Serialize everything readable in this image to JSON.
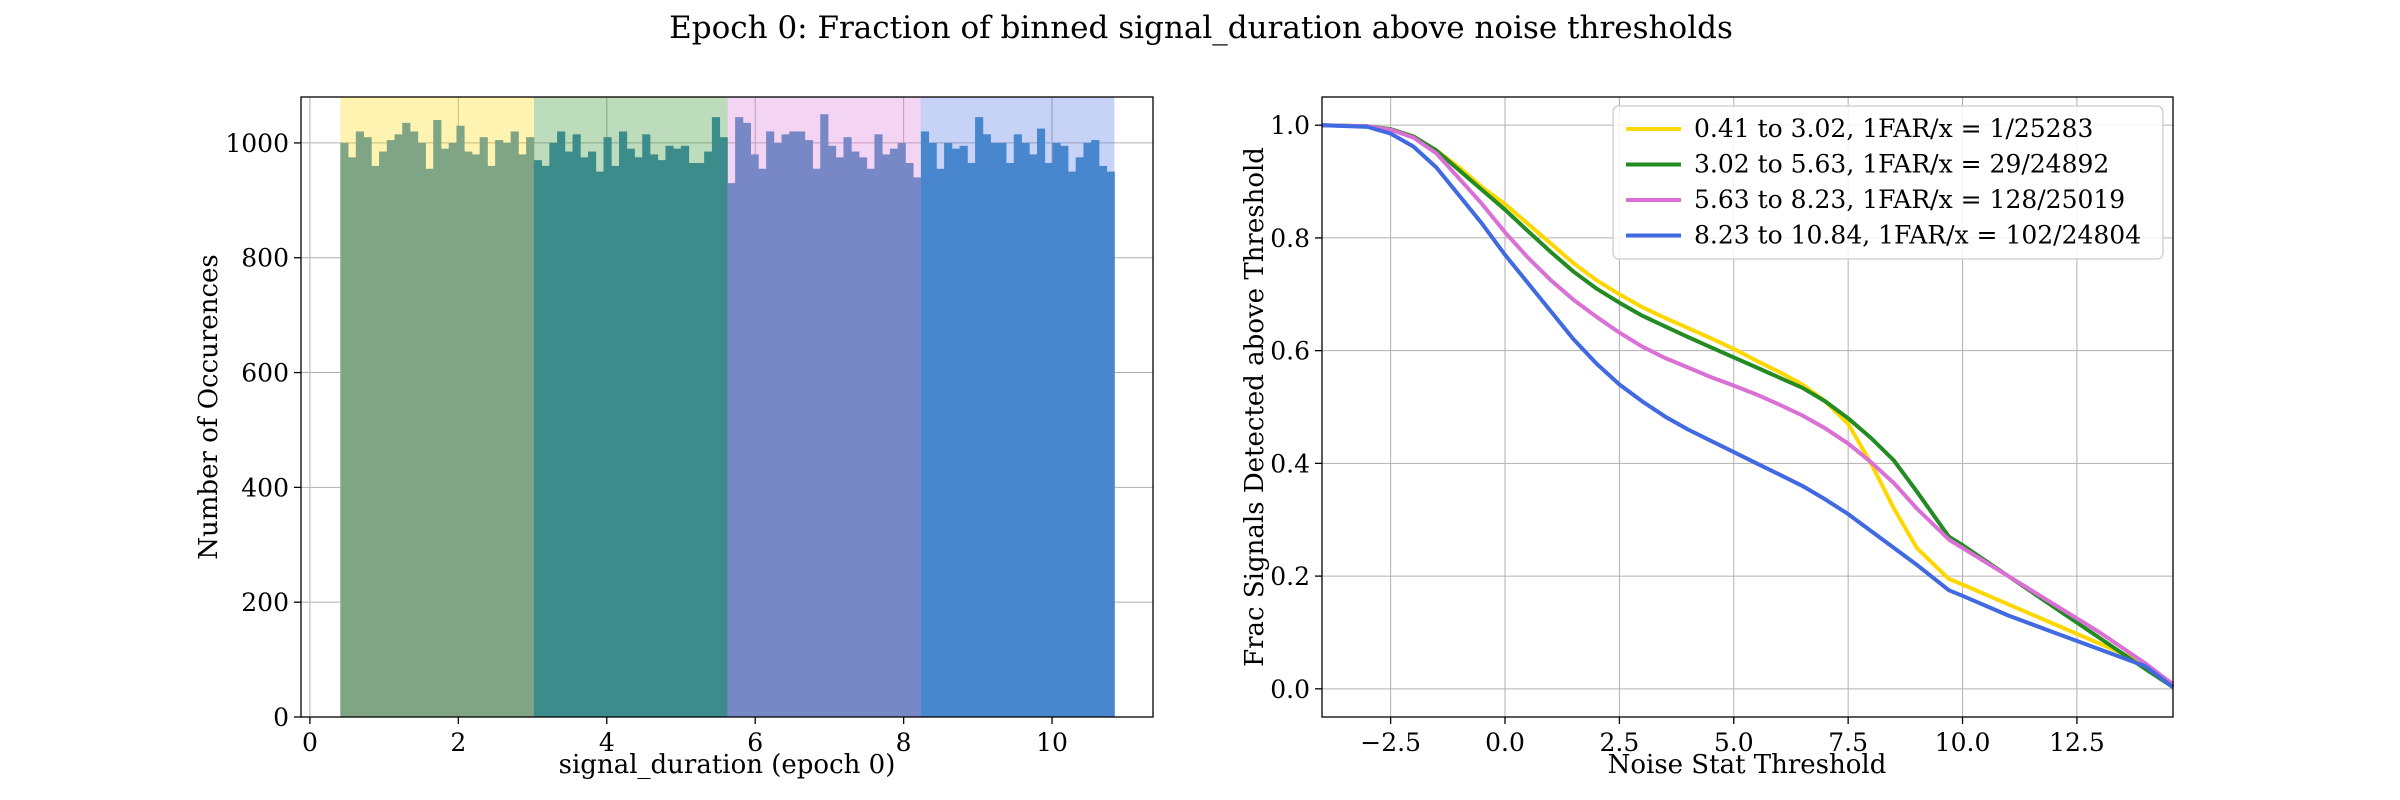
{
  "figure": {
    "title": "Epoch 0: Fraction of binned signal_duration above noise thresholds"
  },
  "chart_data": [
    {
      "type": "bar",
      "subtype": "histogram",
      "xlabel": "signal_duration (epoch 0)",
      "ylabel": "Number of Occurences",
      "xlim": [
        -0.12,
        11.36
      ],
      "ylim": [
        0,
        1080
      ],
      "xticks": [
        "0",
        "2",
        "4",
        "6",
        "8",
        "10"
      ],
      "yticks": [
        "0",
        "200",
        "400",
        "600",
        "800",
        "1000"
      ],
      "grid": true,
      "bin_edges_range": [
        0.41,
        10.84
      ],
      "counts": [
        1000,
        975,
        1020,
        1010,
        960,
        985,
        1005,
        1015,
        1035,
        1020,
        1000,
        955,
        1040,
        990,
        1000,
        1030,
        985,
        980,
        1010,
        960,
        1005,
        1000,
        1020,
        980,
        1010,
        970,
        960,
        1000,
        1020,
        985,
        1015,
        975,
        985,
        950,
        1010,
        960,
        1020,
        990,
        975,
        1015,
        980,
        970,
        995,
        990,
        995,
        965,
        965,
        985,
        1045,
        1010,
        930,
        1045,
        1035,
        980,
        955,
        1020,
        1000,
        1015,
        1020,
        1020,
        1005,
        955,
        1050,
        995,
        975,
        1010,
        985,
        975,
        955,
        1015,
        980,
        990,
        1000,
        965,
        940,
        1020,
        1000,
        955,
        1000,
        990,
        995,
        965,
        1045,
        1015,
        1000,
        1000,
        965,
        1015,
        1000,
        980,
        1025,
        965,
        1000,
        995,
        950,
        975,
        1000,
        1005,
        960,
        950
      ],
      "shaded_ranges": [
        {
          "from": 0.41,
          "to": 3.02,
          "color": "#FFD700"
        },
        {
          "from": 3.02,
          "to": 5.63,
          "color": "#228B22"
        },
        {
          "from": 5.63,
          "to": 8.23,
          "color": "#DA70D6"
        },
        {
          "from": 8.23,
          "to": 10.84,
          "color": "#4169E1"
        }
      ],
      "bar_colors": [
        "#7FA584",
        "#3C8C8C",
        "#7888C6",
        "#4886CE"
      ]
    },
    {
      "type": "line",
      "xlabel": "Noise Stat Threshold",
      "ylabel": "Frac Signals Detected above Threshold",
      "xlim": [
        -4.0,
        14.6
      ],
      "ylim": [
        -0.05,
        1.05
      ],
      "xticks": [
        "−2.5",
        "0.0",
        "2.5",
        "5.0",
        "7.5",
        "10.0",
        "12.5"
      ],
      "yticks": [
        "0.0",
        "0.2",
        "0.4",
        "0.6",
        "0.8",
        "1.0"
      ],
      "grid": true,
      "legend_position": "top-right",
      "series": [
        {
          "name": "0.41 to 3.02, 1FAR/x = 1/25283",
          "color": "#FFD700",
          "x": [
            -4.0,
            -3.0,
            -2.5,
            -2.0,
            -1.5,
            -1.0,
            -0.5,
            0.0,
            0.5,
            1.0,
            1.5,
            2.0,
            2.5,
            3.0,
            3.5,
            4.0,
            4.5,
            5.0,
            5.5,
            6.0,
            6.5,
            7.0,
            7.5,
            8.0,
            8.5,
            9.0,
            9.7,
            10.0,
            11.0,
            12.0,
            13.0,
            14.0,
            14.6
          ],
          "y": [
            1.0,
            0.998,
            0.993,
            0.98,
            0.955,
            0.925,
            0.89,
            0.86,
            0.825,
            0.79,
            0.755,
            0.725,
            0.7,
            0.677,
            0.658,
            0.64,
            0.622,
            0.603,
            0.582,
            0.562,
            0.54,
            0.51,
            0.47,
            0.4,
            0.32,
            0.25,
            0.195,
            0.185,
            0.15,
            0.115,
            0.08,
            0.045,
            0.005
          ]
        },
        {
          "name": "3.02 to 5.63, 1FAR/x = 29/24892",
          "color": "#228B22",
          "x": [
            -4.0,
            -3.0,
            -2.5,
            -2.0,
            -1.5,
            -1.0,
            -0.5,
            0.0,
            0.5,
            1.0,
            1.5,
            2.0,
            2.5,
            3.0,
            3.5,
            4.0,
            4.5,
            5.0,
            5.5,
            6.0,
            6.5,
            7.0,
            7.5,
            8.0,
            8.5,
            9.0,
            9.7,
            10.0,
            11.0,
            12.0,
            13.0,
            14.0,
            14.6
          ],
          "y": [
            1.0,
            0.998,
            0.993,
            0.98,
            0.955,
            0.92,
            0.885,
            0.85,
            0.812,
            0.775,
            0.74,
            0.71,
            0.685,
            0.662,
            0.643,
            0.624,
            0.606,
            0.588,
            0.57,
            0.552,
            0.534,
            0.51,
            0.48,
            0.445,
            0.405,
            0.35,
            0.27,
            0.255,
            0.2,
            0.145,
            0.09,
            0.035,
            0.003
          ]
        },
        {
          "name": "5.63 to 8.23, 1FAR/x = 128/25019",
          "color": "#DA70D6",
          "x": [
            -4.0,
            -3.0,
            -2.5,
            -2.0,
            -1.5,
            -1.0,
            -0.5,
            0.0,
            0.5,
            1.0,
            1.5,
            2.0,
            2.5,
            3.0,
            3.5,
            4.0,
            4.5,
            5.0,
            5.5,
            6.0,
            6.5,
            7.0,
            7.5,
            8.0,
            8.5,
            9.0,
            9.7,
            10.0,
            11.0,
            12.0,
            13.0,
            14.0,
            14.6
          ],
          "y": [
            1.0,
            0.998,
            0.992,
            0.978,
            0.95,
            0.905,
            0.86,
            0.81,
            0.765,
            0.725,
            0.69,
            0.66,
            0.632,
            0.607,
            0.587,
            0.57,
            0.553,
            0.538,
            0.522,
            0.504,
            0.485,
            0.462,
            0.435,
            0.402,
            0.365,
            0.32,
            0.265,
            0.25,
            0.2,
            0.15,
            0.1,
            0.045,
            0.008
          ]
        },
        {
          "name": "8.23 to 10.84, 1FAR/x = 102/24804",
          "color": "#4169E1",
          "x": [
            -4.0,
            -3.0,
            -2.5,
            -2.0,
            -1.5,
            -1.0,
            -0.5,
            0.0,
            0.5,
            1.0,
            1.5,
            2.0,
            2.5,
            3.0,
            3.5,
            4.0,
            4.5,
            5.0,
            5.5,
            6.0,
            6.5,
            7.0,
            7.5,
            8.0,
            8.5,
            9.0,
            9.7,
            10.0,
            11.0,
            12.0,
            13.0,
            14.0,
            14.6
          ],
          "y": [
            1.0,
            0.997,
            0.985,
            0.962,
            0.925,
            0.875,
            0.825,
            0.77,
            0.72,
            0.67,
            0.62,
            0.577,
            0.54,
            0.51,
            0.483,
            0.46,
            0.44,
            0.42,
            0.4,
            0.38,
            0.36,
            0.336,
            0.31,
            0.28,
            0.25,
            0.22,
            0.175,
            0.165,
            0.13,
            0.1,
            0.07,
            0.04,
            0.003
          ]
        }
      ]
    }
  ]
}
